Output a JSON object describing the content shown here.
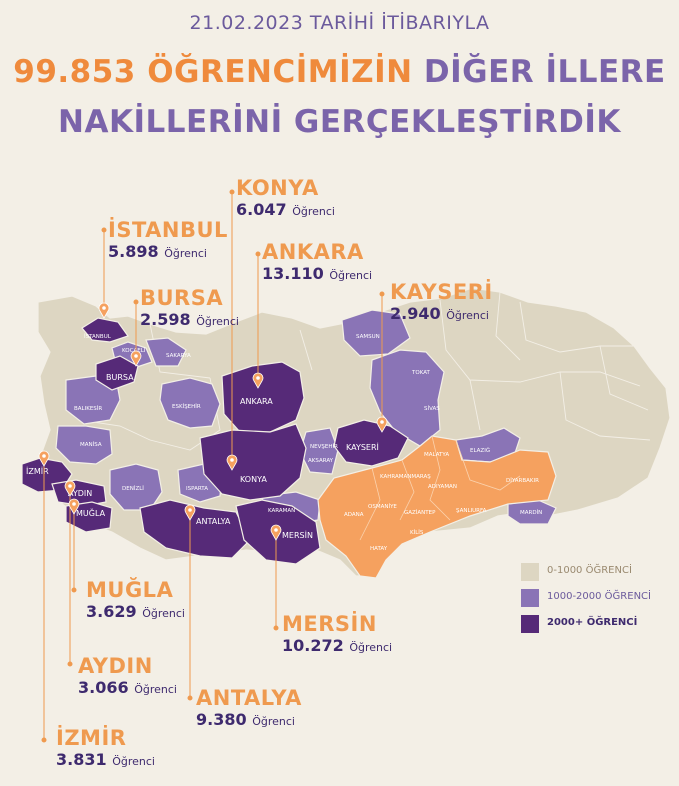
{
  "header": {
    "date_line": "21.02.2023 TARİHİ İTİBARIYLA",
    "count": "99.853",
    "line1_highlight": "ÖĞRENCİMİZİN",
    "line1_rest": "DİĞER İLLERE",
    "line2": "NAKİLLERİNİ GERÇEKLEŞTİRDİK"
  },
  "unit": "Öğrenci",
  "cities": [
    {
      "name": "KONYA",
      "count": "6.047"
    },
    {
      "name": "İSTANBUL",
      "count": "5.898"
    },
    {
      "name": "ANKARA",
      "count": "13.110"
    },
    {
      "name": "KAYSERİ",
      "count": "2.940"
    },
    {
      "name": "BURSA",
      "count": "2.598"
    },
    {
      "name": "MUĞLA",
      "count": "3.629"
    },
    {
      "name": "MERSİN",
      "count": "10.272"
    },
    {
      "name": "AYDIN",
      "count": "3.066"
    },
    {
      "name": "ANTALYA",
      "count": "9.380"
    },
    {
      "name": "İZMİR",
      "count": "3.831"
    }
  ],
  "map_labels": {
    "istanbul": "İSTANBUL",
    "kocaeli": "KOCAELİ",
    "sakarya": "SAKARYA",
    "bursa": "BURSA",
    "balikesir": "BALIKESİR",
    "manisa": "MANİSA",
    "eskisehir": "ESKİŞEHİR",
    "denizli": "DENİZLİ",
    "isparta": "ISPARTA",
    "ankara": "ANKARA",
    "konya": "KONYA",
    "aksaray": "AKSARAY",
    "nevsehir": "NEVŞEHİR",
    "kayseri": "KAYSERİ",
    "karaman": "KARAMAN",
    "mersin": "MERSİN",
    "antalya": "ANTALYA",
    "samsun": "SAMSUN",
    "tokat": "TOKAT",
    "sivas": "SİVAS",
    "malatya": "MALATYA",
    "elazig": "ELAZIĞ",
    "kahramanmaras": "KAHRAMANMARAŞ",
    "adiyaman": "ADIYAMAN",
    "diyarbakir": "DİYARBAKIR",
    "sanliurfa": "ŞANLIURFA",
    "gaziantep": "GAZİANTEP",
    "osmaniye": "OSMANİYE",
    "adana": "ADANA",
    "kilis": "KİLİS",
    "hatay": "HATAY",
    "mardin": "MARDİN",
    "izmir": "İZMİR",
    "aydin": "AYDIN",
    "mugla": "MUĞLA"
  },
  "legend": [
    {
      "label": "0-1000 ÖĞRENCİ",
      "color": "#ddd6c2"
    },
    {
      "label": "1000-2000 ÖĞRENCİ",
      "color": "#8a74b6"
    },
    {
      "label": "2000+ ÖĞRENCİ",
      "color": "#562a78"
    }
  ],
  "colors": {
    "background": "#f3efe6",
    "accent_orange": "#ef8a3c",
    "earthquake_zone": "#f5a15f",
    "header_purple": "#7b64aa",
    "count_text": "#3e2a6e"
  }
}
